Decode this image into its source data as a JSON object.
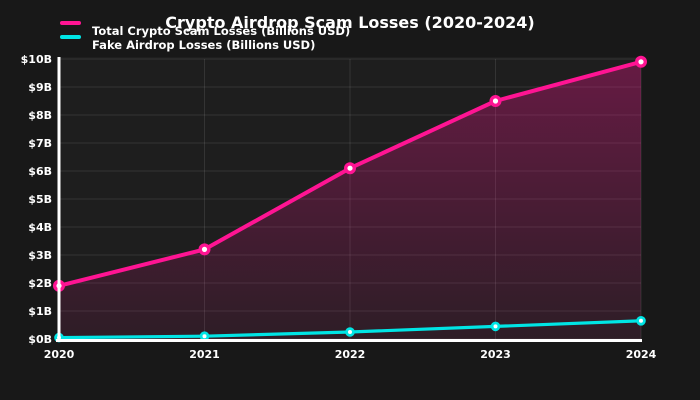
{
  "chart_data": {
    "type": "line",
    "title": "Crypto Airdrop Scam Losses (2020-2024)",
    "x_labels": [
      "2020",
      "2021",
      "2022",
      "2023",
      "2024"
    ],
    "series": [
      {
        "name": "Total Crypto Scam Losses (Billions USD)",
        "values": [
          1.9,
          3.2,
          6.1,
          8.5,
          9.9
        ],
        "color": "#ff1493",
        "marker": "circle-white-core",
        "area_fill": true
      },
      {
        "name": "Fake Airdrop Losses (Billions USD)",
        "values": [
          0.05,
          0.1,
          0.25,
          0.45,
          0.65
        ],
        "color": "#00e5e5",
        "marker": "circle-white-core",
        "area_fill": false
      }
    ],
    "ylim": [
      0,
      10
    ],
    "y_tick_values": [
      0,
      1,
      2,
      3,
      4,
      5,
      6,
      7,
      8,
      9,
      10
    ],
    "y_tick_labels": [
      "$0B",
      "$1B",
      "$2B",
      "$3B",
      "$4B",
      "$5B",
      "$6B",
      "$7B",
      "$8B",
      "$9B",
      "$10B"
    ],
    "grid": true,
    "legend_position": "top-left",
    "colors": {
      "background": "#181818",
      "plot_background": "#1e1e1e",
      "gridline": "rgba(255,255,255,0.10)",
      "axis": "#ffffff",
      "text": "#ffffff"
    }
  }
}
